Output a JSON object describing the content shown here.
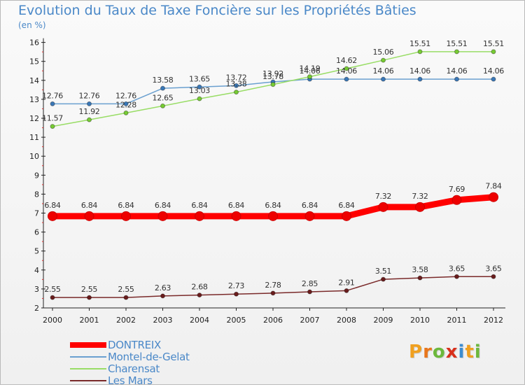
{
  "header": {
    "title": "Evolution du Taux de Taxe Foncière sur les Propriétés Bâties",
    "subtitle": "(en %)"
  },
  "logo": {
    "text": "Proxiti",
    "letters": [
      "P",
      "r",
      "o",
      "x",
      "i",
      "t",
      "i"
    ],
    "colors": [
      "#f0a020",
      "#e8761c",
      "#6cb83c",
      "#d8301c",
      "#3c8cd0",
      "#f0a020",
      "#6cb83c"
    ]
  },
  "chart_data": {
    "type": "line",
    "title": "Evolution du Taux de Taxe Foncière sur les Propriétés Bâties",
    "ylabel": "(en %)",
    "xlabel": "",
    "categories": [
      "2000",
      "2001",
      "2002",
      "2003",
      "2004",
      "2005",
      "2006",
      "2007",
      "2008",
      "2009",
      "2010",
      "2011",
      "2012"
    ],
    "ylim": [
      2,
      16
    ],
    "yticks": [
      "2",
      "3",
      "4",
      "5",
      "6",
      "7",
      "8",
      "9",
      "10",
      "11",
      "12",
      "13",
      "14",
      "15",
      "16"
    ],
    "grid": false,
    "legend_position": "bottom-left",
    "series": [
      {
        "name": "DONTREIX",
        "color": "#ff0000",
        "marker": "#ee0000",
        "thick": true,
        "values": [
          6.84,
          6.84,
          6.84,
          6.84,
          6.84,
          6.84,
          6.84,
          6.84,
          6.84,
          7.32,
          7.32,
          7.69,
          7.84
        ],
        "labels": [
          "6.84",
          "6.84",
          "6.84",
          "6.84",
          "6.84",
          "6.84",
          "6.84",
          "6.84",
          "6.84",
          "7.32",
          "7.32",
          "7.69",
          "7.84"
        ]
      },
      {
        "name": "Montel-de-Gelat",
        "color": "#6aa0d0",
        "marker": "#3a78b8",
        "thick": false,
        "values": [
          12.76,
          12.76,
          12.76,
          13.58,
          13.65,
          13.72,
          13.92,
          14.06,
          14.06,
          14.06,
          14.06,
          14.06,
          14.06
        ],
        "labels": [
          "12.76",
          "12.76",
          "12.76",
          "13.58",
          "13.65",
          "13.72",
          "13.92",
          "14.06",
          "14.06",
          "14.06",
          "14.06",
          "14.06",
          "14.06"
        ]
      },
      {
        "name": "Charensat",
        "color": "#99dd66",
        "marker": "#77cc33",
        "thick": false,
        "values": [
          11.57,
          11.92,
          12.28,
          12.65,
          13.03,
          13.38,
          13.78,
          14.19,
          14.62,
          15.06,
          15.51,
          15.51,
          15.51
        ],
        "labels": [
          "11.57",
          "11.92",
          "12.28",
          "12.65",
          "13.03",
          "13.38",
          "13.78",
          "14.19",
          "14.62",
          "15.06",
          "15.51",
          "15.51",
          "15.51"
        ]
      },
      {
        "name": "Les Mars",
        "color": "#7a2a2a",
        "marker": "#6a1c1c",
        "thick": false,
        "values": [
          2.55,
          2.55,
          2.55,
          2.63,
          2.68,
          2.73,
          2.78,
          2.85,
          2.91,
          3.51,
          3.58,
          3.65,
          3.65
        ],
        "labels": [
          "2.55",
          "2.55",
          "2.55",
          "2.63",
          "2.68",
          "2.73",
          "2.78",
          "2.85",
          "2.91",
          "3.51",
          "3.58",
          "3.65",
          "3.65"
        ]
      }
    ]
  }
}
